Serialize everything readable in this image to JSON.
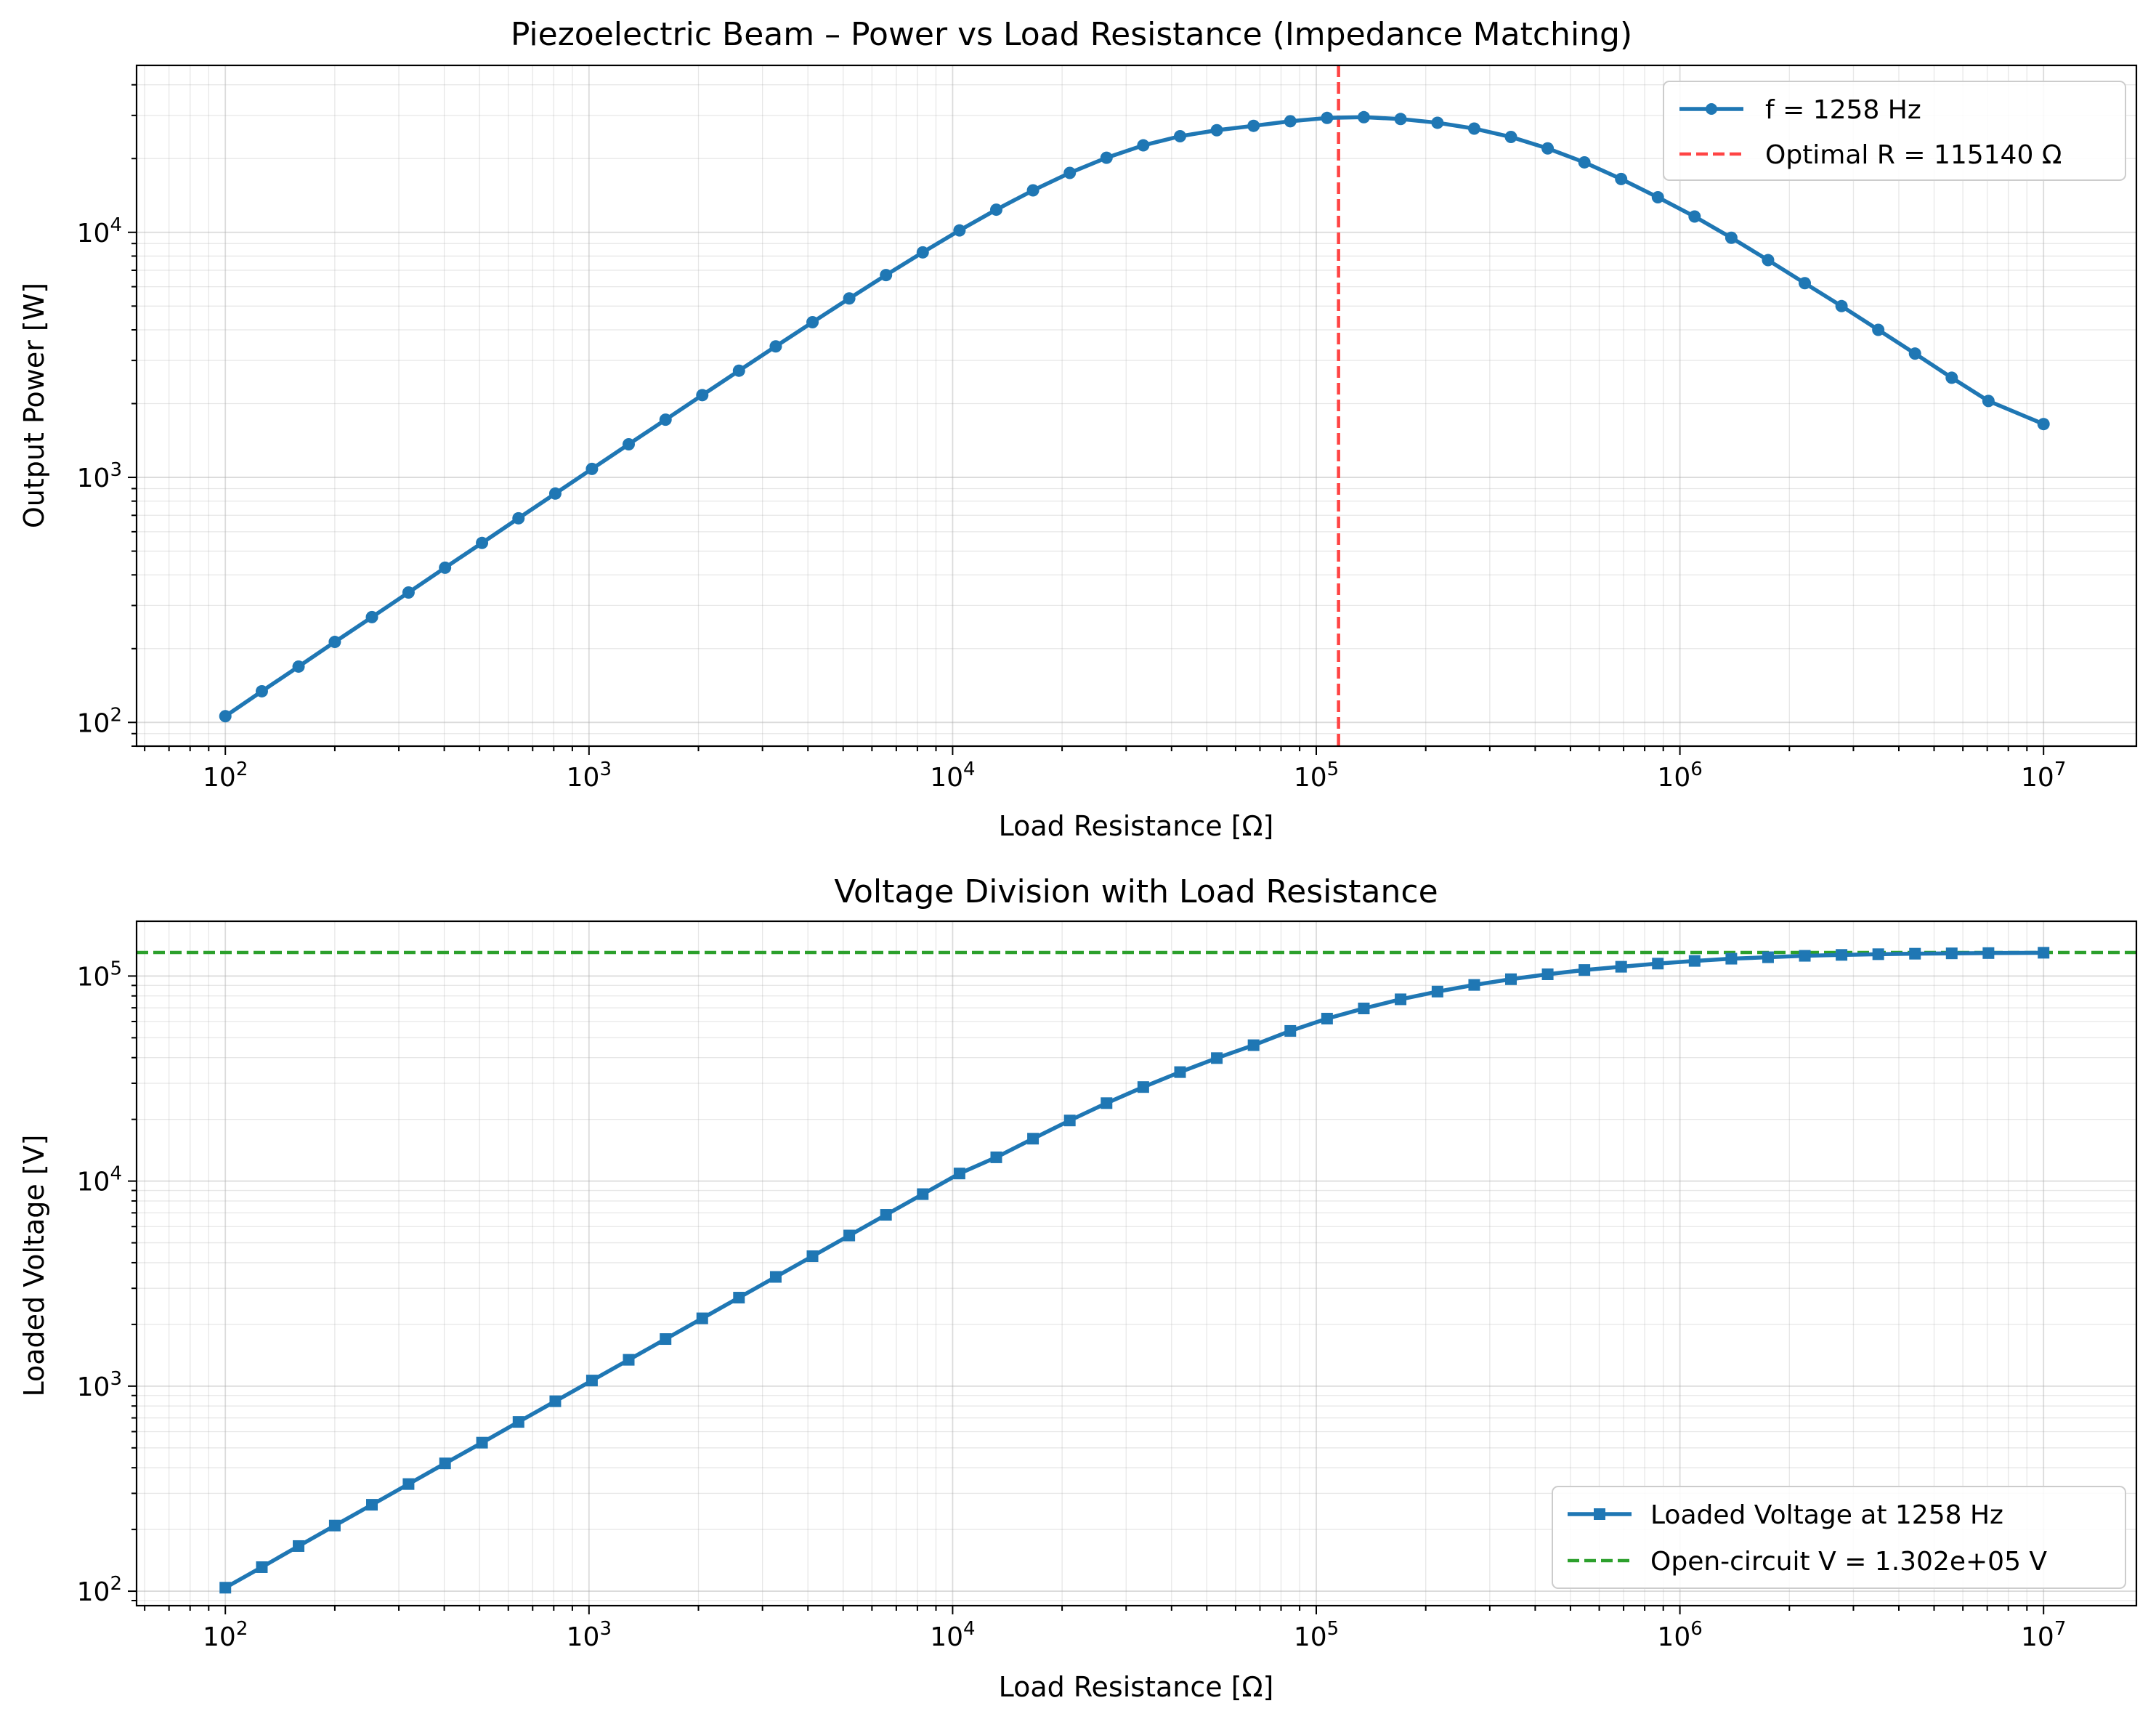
{
  "chart_data": [
    {
      "type": "line",
      "title": "Piezoelectric Beam – Power vs Load Resistance (Impedance Matching)",
      "xlabel": "Load Resistance [Ω]",
      "ylabel": "Output Power [W]",
      "xscale": "log",
      "yscale": "log",
      "xlim": [
        57,
        18000000
      ],
      "ylim": [
        80,
        48000
      ],
      "xticks": [
        {
          "value": 100,
          "base": "10",
          "exp": "2"
        },
        {
          "value": 1000,
          "base": "10",
          "exp": "3"
        },
        {
          "value": 10000,
          "base": "10",
          "exp": "4"
        },
        {
          "value": 100000,
          "base": "10",
          "exp": "5"
        },
        {
          "value": 1000000,
          "base": "10",
          "exp": "6"
        },
        {
          "value": 10000000,
          "base": "10",
          "exp": "7"
        }
      ],
      "yticks": [
        {
          "value": 100,
          "base": "10",
          "exp": "2"
        },
        {
          "value": 1000,
          "base": "10",
          "exp": "3"
        },
        {
          "value": 10000,
          "base": "10",
          "exp": "4"
        }
      ],
      "grid": true,
      "legend_position": "upper right",
      "series": [
        {
          "name": "f = 1258 Hz",
          "color": "#1f77b4",
          "marker": "circle",
          "x": [
            100,
            126,
            159,
            200,
            253,
            319,
            402,
            508,
            640,
            808,
            1019,
            1286,
            1624,
            2049,
            2585,
            3263,
            4118,
            5197,
            6558,
            8276,
            10445,
            13183,
            16638,
            20997,
            26499,
            33442,
            42207,
            53267,
            67225,
            84843,
            107075,
            135136,
            170548,
            215443,
            271859,
            343047,
            432876,
            546228,
            689261,
            869749,
            1097499,
            1384886,
            1747528,
            2205131,
            2782559,
            3511192,
            4430621,
            5590810,
            7054802,
            10000000
          ],
          "y": [
            106,
            134,
            169,
            213,
            269,
            339,
            428,
            540,
            681,
            859,
            1083,
            1365,
            1720,
            2166,
            2725,
            3425,
            4296,
            5373,
            6692,
            8285,
            10179,
            12373,
            14834,
            17478,
            20155,
            22644,
            24668,
            26099,
            27200,
            28400,
            29300,
            29500,
            29000,
            28000,
            26500,
            24500,
            22000,
            19300,
            16500,
            13900,
            11600,
            9500,
            7700,
            6200,
            5000,
            4000,
            3200,
            2550,
            2050,
            1650
          ]
        }
      ],
      "vlines": [
        {
          "name": "Optimal R = 115140 Ω",
          "x": 115140,
          "color": "#ff4444",
          "style": "dashed"
        }
      ]
    },
    {
      "type": "line",
      "title": "Voltage Division with Load Resistance",
      "xlabel": "Load Resistance [Ω]",
      "ylabel": "Loaded Voltage [V]",
      "xscale": "log",
      "yscale": "log",
      "xlim": [
        57,
        18000000
      ],
      "ylim": [
        85,
        185000
      ],
      "xticks": [
        {
          "value": 100,
          "base": "10",
          "exp": "2"
        },
        {
          "value": 1000,
          "base": "10",
          "exp": "3"
        },
        {
          "value": 10000,
          "base": "10",
          "exp": "4"
        },
        {
          "value": 100000,
          "base": "10",
          "exp": "5"
        },
        {
          "value": 1000000,
          "base": "10",
          "exp": "6"
        },
        {
          "value": 10000000,
          "base": "10",
          "exp": "7"
        }
      ],
      "yticks": [
        {
          "value": 100,
          "base": "10",
          "exp": "2"
        },
        {
          "value": 1000,
          "base": "10",
          "exp": "3"
        },
        {
          "value": 10000,
          "base": "10",
          "exp": "4"
        },
        {
          "value": 100000,
          "base": "10",
          "exp": "5"
        }
      ],
      "grid": true,
      "legend_position": "lower right",
      "series": [
        {
          "name": "Loaded Voltage at 1258 Hz",
          "color": "#1f77b4",
          "marker": "square",
          "x": [
            100,
            126,
            159,
            200,
            253,
            319,
            402,
            508,
            640,
            808,
            1019,
            1286,
            1624,
            2049,
            2585,
            3263,
            4118,
            5197,
            6558,
            8276,
            10445,
            13183,
            16638,
            20997,
            26499,
            33442,
            42207,
            53267,
            67225,
            84843,
            107075,
            135136,
            170548,
            215443,
            271859,
            343047,
            432876,
            546228,
            689261,
            869749,
            1097499,
            1384886,
            1747528,
            2205131,
            2782559,
            3511192,
            4430621,
            5590810,
            7054802,
            10000000
          ],
          "y": [
            104,
            131,
            166,
            209,
            264,
            333,
            420,
            530,
            669,
            844,
            1065,
            1344,
            1697,
            2141,
            2702,
            3410,
            4302,
            5428,
            6848,
            8637,
            10890,
            13060,
            16100,
            19750,
            24000,
            28750,
            34000,
            39800,
            46000,
            54000,
            62000,
            69500,
            77000,
            84000,
            90500,
            96500,
            102000,
            107000,
            111000,
            115000,
            118500,
            121500,
            123500,
            125500,
            126800,
            127800,
            128500,
            129000,
            129400,
            129900
          ]
        }
      ],
      "hlines": [
        {
          "name": "Open-circuit V = 1.302e+05 V",
          "y": 130200,
          "color": "#2ca02c",
          "style": "dashed"
        }
      ]
    }
  ]
}
